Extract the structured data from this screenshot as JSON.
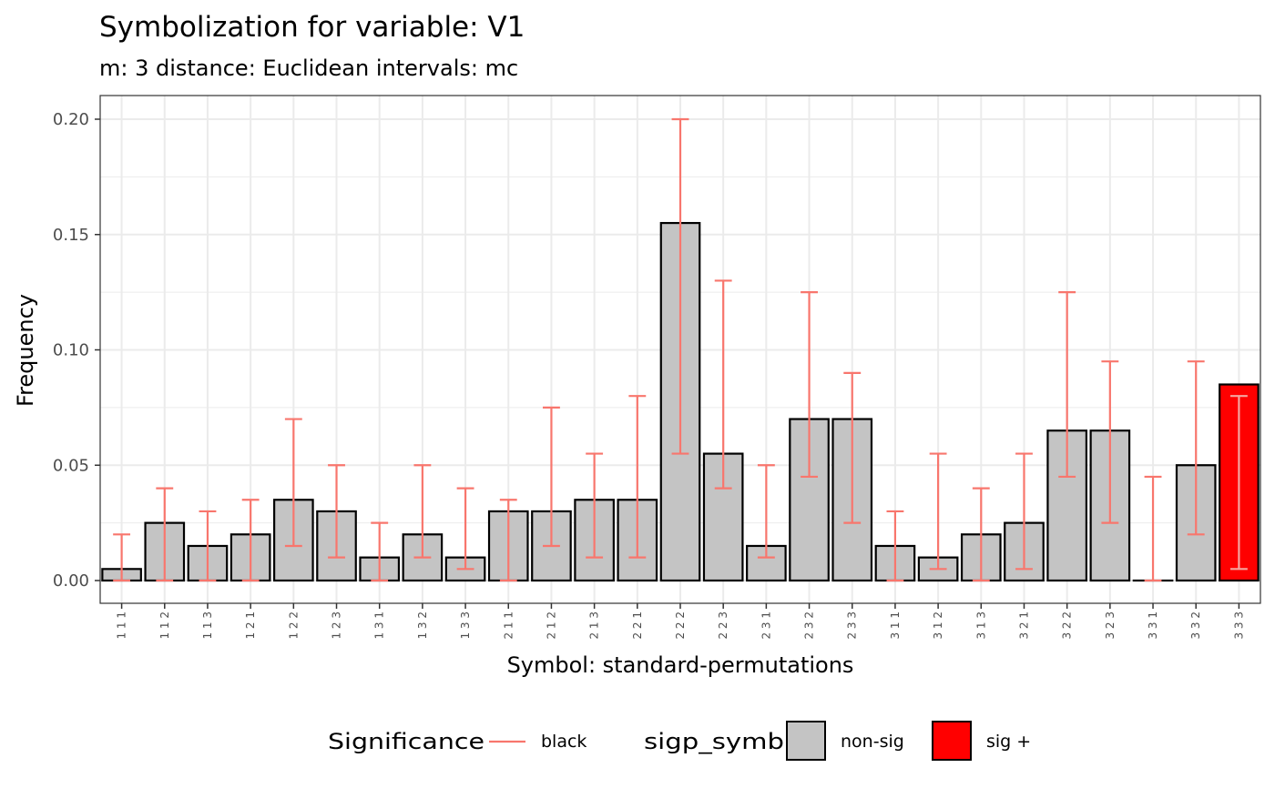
{
  "chart_data": {
    "type": "bar",
    "title": "Symbolization for variable: V1",
    "subtitle": "m: 3  distance:  Euclidean  intervals:  mc",
    "xlabel": "Symbol: standard-permutations",
    "ylabel": "Frequency",
    "ylim": [
      -0.01,
      0.21
    ],
    "yticks": [
      0.0,
      0.05,
      0.1,
      0.15,
      0.2
    ],
    "ytick_labels": [
      "0.00",
      "0.05",
      "0.10",
      "0.15",
      "0.20"
    ],
    "grid": true,
    "legend_position": "bottom",
    "categories": [
      "1 1 1",
      "1 1 2",
      "1 1 3",
      "1 2 1",
      "1 2 2",
      "1 2 3",
      "1 3 1",
      "1 3 2",
      "1 3 3",
      "2 1 1",
      "2 1 2",
      "2 1 3",
      "2 2 1",
      "2 2 2",
      "2 2 3",
      "2 3 1",
      "2 3 2",
      "2 3 3",
      "3 1 1",
      "3 1 2",
      "3 1 3",
      "3 2 1",
      "3 2 2",
      "3 2 3",
      "3 3 1",
      "3 3 2",
      "3 3 3"
    ],
    "values": [
      0.005,
      0.025,
      0.015,
      0.02,
      0.035,
      0.03,
      0.01,
      0.02,
      0.01,
      0.03,
      0.03,
      0.035,
      0.035,
      0.155,
      0.055,
      0.015,
      0.07,
      0.07,
      0.015,
      0.01,
      0.02,
      0.025,
      0.065,
      0.065,
      0.0,
      0.05,
      0.085
    ],
    "error_lower": [
      0.0,
      0.0,
      0.0,
      0.0,
      0.015,
      0.01,
      0.0,
      0.01,
      0.005,
      0.0,
      0.015,
      0.01,
      0.01,
      0.055,
      0.04,
      0.01,
      0.045,
      0.025,
      0.0,
      0.005,
      0.0,
      0.005,
      0.045,
      0.025,
      0.0,
      0.02,
      0.005
    ],
    "error_upper": [
      0.02,
      0.04,
      0.03,
      0.035,
      0.07,
      0.05,
      0.025,
      0.05,
      0.04,
      0.035,
      0.075,
      0.055,
      0.08,
      0.2,
      0.13,
      0.05,
      0.125,
      0.09,
      0.03,
      0.055,
      0.04,
      0.055,
      0.125,
      0.095,
      0.045,
      0.095,
      0.08
    ],
    "significance": [
      "non-sig",
      "non-sig",
      "non-sig",
      "non-sig",
      "non-sig",
      "non-sig",
      "non-sig",
      "non-sig",
      "non-sig",
      "non-sig",
      "non-sig",
      "non-sig",
      "non-sig",
      "non-sig",
      "non-sig",
      "non-sig",
      "non-sig",
      "non-sig",
      "non-sig",
      "non-sig",
      "non-sig",
      "non-sig",
      "non-sig",
      "non-sig",
      "non-sig",
      "non-sig",
      "sig +"
    ],
    "colors": {
      "non-sig": "#c4c4c4",
      "sig +": "#ff0000",
      "errorbar": "#f8766d",
      "errorbar_on_sig": "#f4a6a0",
      "bar_outline": "#000000",
      "grid": "#ebebeb"
    },
    "legend": {
      "errorbar_title": "Significance",
      "errorbar_label": "black",
      "fill_title": "sigp_symb",
      "fill_labels": [
        "non-sig",
        "sig +"
      ]
    }
  }
}
